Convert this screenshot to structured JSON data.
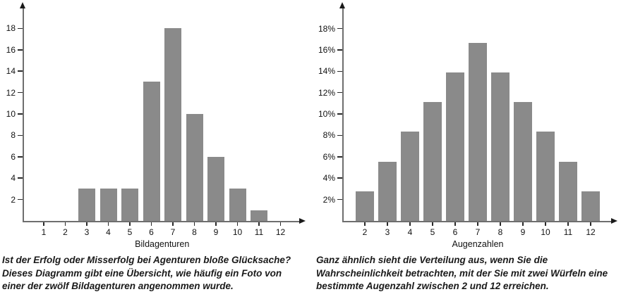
{
  "colors": {
    "bar": "#8a8a8a",
    "axis": "#6e6e6e",
    "tick": "#2a2a2a",
    "text": "#111111"
  },
  "chart_data": [
    {
      "type": "bar",
      "title": "",
      "xlabel": "Bildagenturen",
      "ylabel": "",
      "categories": [
        "1",
        "2",
        "3",
        "4",
        "5",
        "6",
        "7",
        "8",
        "9",
        "10",
        "11",
        "12"
      ],
      "values": [
        0,
        0,
        3,
        3,
        3,
        13,
        18,
        10,
        6,
        3,
        1,
        0
      ],
      "y_ticks": [
        2,
        4,
        6,
        8,
        10,
        12,
        14,
        16,
        18
      ],
      "y_tick_labels": [
        "2",
        "4",
        "6",
        "8",
        "10",
        "12",
        "14",
        "16",
        "18"
      ],
      "ylim": [
        0,
        19
      ],
      "grid": false,
      "legend": false
    },
    {
      "type": "bar",
      "title": "",
      "xlabel": "Augenzahlen",
      "ylabel": "",
      "categories": [
        "2",
        "3",
        "4",
        "5",
        "6",
        "7",
        "8",
        "9",
        "10",
        "11",
        "12"
      ],
      "values": [
        2.78,
        5.56,
        8.33,
        11.11,
        13.89,
        16.67,
        13.89,
        11.11,
        8.33,
        5.56,
        2.78
      ],
      "y_ticks": [
        2,
        4,
        6,
        8,
        10,
        12,
        14,
        16,
        18
      ],
      "y_tick_labels": [
        "2%",
        "4%",
        "6%",
        "8%",
        "10%",
        "12%",
        "14%",
        "16%",
        "18%"
      ],
      "ylim": [
        0,
        19
      ],
      "grid": false,
      "legend": false
    }
  ],
  "captions": {
    "left": "Ist der Erfolg oder Misserfolg bei Agenturen bloße Glücksache? Dieses Diagramm gibt eine Übersicht, wie häufig ein Foto von einer der zwölf Bildagenturen angenommen wurde.",
    "right": "Ganz ähnlich sieht die Verteilung aus, wenn Sie die Wahrscheinlichkeit betrachten, mit der Sie mit zwei Würfeln eine bestimmte Augenzahl zwischen 2 und 12 erreichen."
  }
}
